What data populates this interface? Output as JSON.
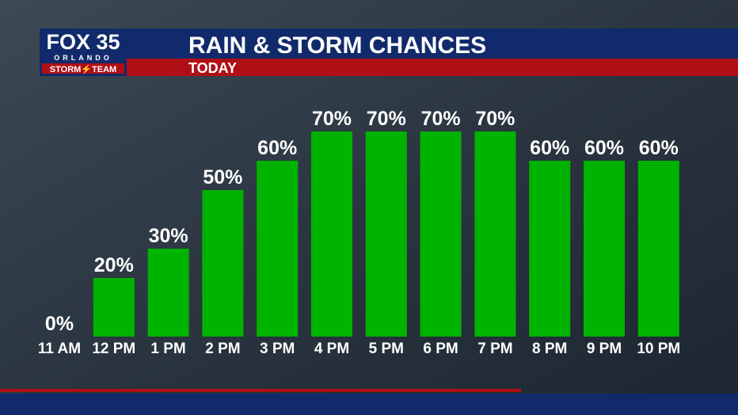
{
  "chart_data": {
    "type": "bar",
    "title": "RAIN & STORM CHANCES",
    "subtitle": "TODAY",
    "logo": {
      "brand": "FOX 35",
      "city": "ORLANDO",
      "team": "STORM⚡TEAM"
    },
    "categories": [
      "11 AM",
      "12 PM",
      "1 PM",
      "2 PM",
      "3 PM",
      "4 PM",
      "5 PM",
      "6 PM",
      "7 PM",
      "8 PM",
      "9 PM",
      "10 PM"
    ],
    "values": [
      0,
      20,
      30,
      50,
      60,
      70,
      70,
      70,
      70,
      60,
      60,
      60
    ],
    "value_labels": [
      "0%",
      "20%",
      "30%",
      "50%",
      "60%",
      "70%",
      "70%",
      "70%",
      "70%",
      "60%",
      "60%",
      "60%"
    ],
    "color": "#00b300"
  }
}
